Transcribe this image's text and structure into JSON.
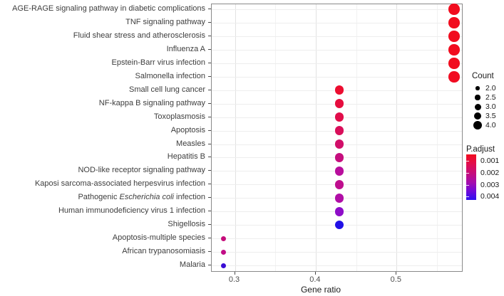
{
  "chart_data": {
    "type": "scatter",
    "title": "",
    "xlabel": "Gene ratio",
    "ylabel": "",
    "x_ticks": [
      "0.3",
      "0.4",
      "0.5"
    ],
    "x_tick_values": [
      0.3,
      0.4,
      0.5
    ],
    "x_minor_values": [
      0.35,
      0.45,
      0.55
    ],
    "xlim": [
      0.272,
      0.582
    ],
    "grid": true,
    "legend_position": "right",
    "encoding": {
      "x": "Gene ratio",
      "size": "Count",
      "color": "P.adjust"
    },
    "pathways": [
      {
        "label": "AGE-RAGE signaling pathway in diabetic complications",
        "gene_ratio": 0.571,
        "count": 4,
        "p_adjust_approx": 0.0005,
        "color": "#F10C1E"
      },
      {
        "label": "TNF signaling pathway",
        "gene_ratio": 0.571,
        "count": 4,
        "p_adjust_approx": 0.0005,
        "color": "#F10C1E"
      },
      {
        "label": "Fluid shear stress and atherosclerosis",
        "gene_ratio": 0.571,
        "count": 4,
        "p_adjust_approx": 0.0005,
        "color": "#F10C1E"
      },
      {
        "label": "Influenza A",
        "gene_ratio": 0.571,
        "count": 4,
        "p_adjust_approx": 0.0005,
        "color": "#F10C1E"
      },
      {
        "label": "Epstein-Barr virus infection",
        "gene_ratio": 0.571,
        "count": 4,
        "p_adjust_approx": 0.0005,
        "color": "#F10C1E"
      },
      {
        "label": "Salmonella infection",
        "gene_ratio": 0.571,
        "count": 4,
        "p_adjust_approx": 0.0006,
        "color": "#F10C22"
      },
      {
        "label": "Small cell lung cancer",
        "gene_ratio": 0.429,
        "count": 3,
        "p_adjust_approx": 0.0011,
        "color": "#EC0D30"
      },
      {
        "label": "NF-kappa B signaling pathway",
        "gene_ratio": 0.429,
        "count": 3,
        "p_adjust_approx": 0.0013,
        "color": "#E60D3E"
      },
      {
        "label": "Toxoplasmosis",
        "gene_ratio": 0.429,
        "count": 3,
        "p_adjust_approx": 0.0014,
        "color": "#E10D4A"
      },
      {
        "label": "Apoptosis",
        "gene_ratio": 0.429,
        "count": 3,
        "p_adjust_approx": 0.0016,
        "color": "#D90E5A"
      },
      {
        "label": "Measles",
        "gene_ratio": 0.429,
        "count": 3,
        "p_adjust_approx": 0.0017,
        "color": "#D10E69"
      },
      {
        "label": "Hepatitis B",
        "gene_ratio": 0.429,
        "count": 3,
        "p_adjust_approx": 0.0019,
        "color": "#C50E7E"
      },
      {
        "label": "NOD-like receptor signaling pathway",
        "gene_ratio": 0.429,
        "count": 3,
        "p_adjust_approx": 0.0022,
        "color": "#B80E9C"
      },
      {
        "label": "Kaposi sarcoma-associated herpesvirus infection",
        "gene_ratio": 0.429,
        "count": 3,
        "p_adjust_approx": 0.0021,
        "color": "#BF0E8E"
      },
      {
        "label": "Pathogenic Escherichia coli infection",
        "italic": {
          "pre": "Pathogenic ",
          "it": "Escherichia coli",
          "post": " infection"
        },
        "gene_ratio": 0.429,
        "count": 3,
        "p_adjust_approx": 0.0023,
        "color": "#B00EA6"
      },
      {
        "label": "Human immunodeficiency virus 1 infection",
        "gene_ratio": 0.429,
        "count": 3,
        "p_adjust_approx": 0.0028,
        "color": "#8E0DC8"
      },
      {
        "label": "Shigellosis",
        "gene_ratio": 0.429,
        "count": 3,
        "p_adjust_approx": 0.0039,
        "color": "#2110E6"
      },
      {
        "label": "Apoptosis-multiple species",
        "gene_ratio": 0.286,
        "count": 2,
        "p_adjust_approx": 0.0019,
        "color": "#C50D7A"
      },
      {
        "label": "African trypanosomiasis",
        "gene_ratio": 0.286,
        "count": 2,
        "p_adjust_approx": 0.002,
        "color": "#C10D86"
      },
      {
        "label": "Malaria",
        "gene_ratio": 0.286,
        "count": 2,
        "p_adjust_approx": 0.0037,
        "color": "#3A0DD4"
      }
    ],
    "size_legend": {
      "title": "Count",
      "entries": [
        {
          "label": "2.0",
          "value": 2.0
        },
        {
          "label": "2.5",
          "value": 2.5
        },
        {
          "label": "3.0",
          "value": 3.0
        },
        {
          "label": "3.5",
          "value": 3.5
        },
        {
          "label": "4.0",
          "value": 4.0
        }
      ]
    },
    "color_legend": {
      "title": "P.adjust",
      "tick_labels": [
        "0.001",
        "0.002",
        "0.003",
        "0.004"
      ],
      "low_p_color": "#F10C1E",
      "mid_p_color": "#C40D7D",
      "high_p_color": "#2E10F0"
    }
  }
}
